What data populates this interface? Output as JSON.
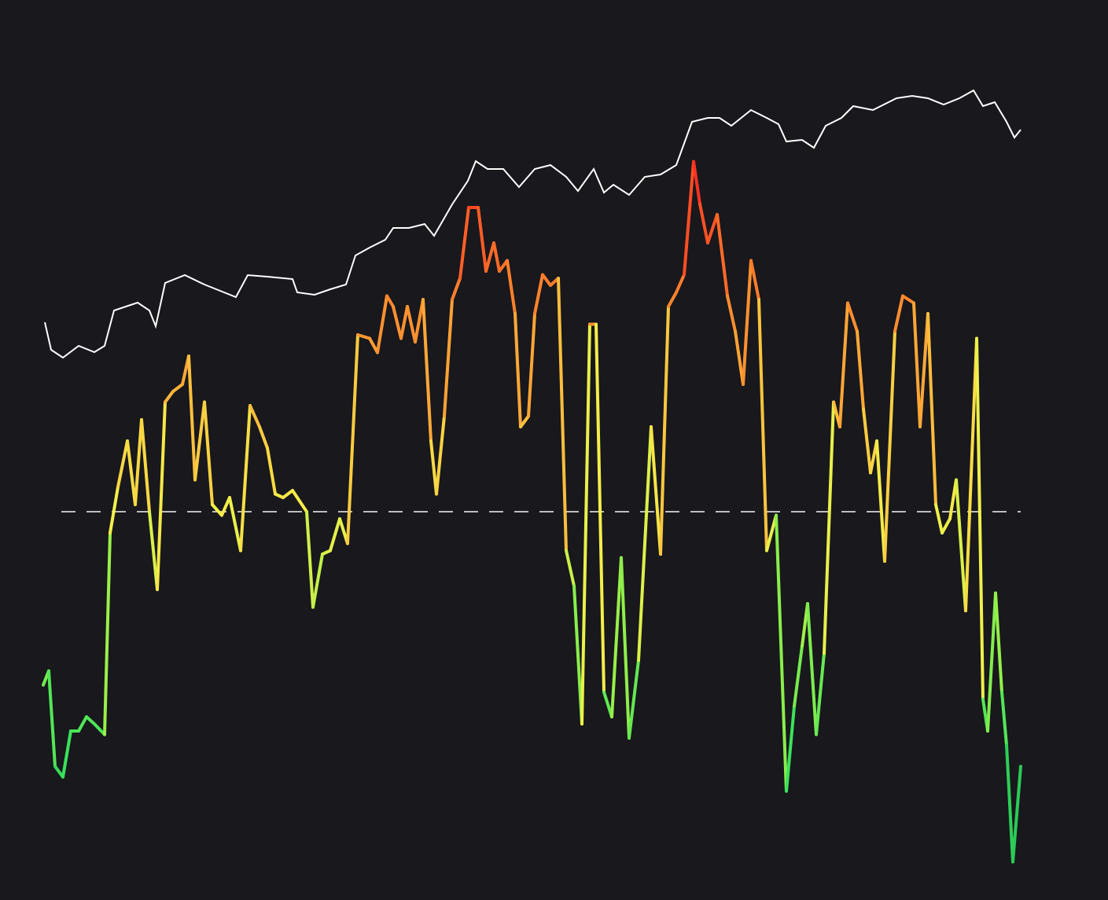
{
  "chart_data": {
    "type": "line",
    "title": "",
    "xlabel": "",
    "ylabel": "",
    "grid": false,
    "legend": "none",
    "background": "#18181d",
    "reference_line": {
      "value": 0,
      "style": "dashed",
      "color": "#bdbdbd"
    },
    "color_scale": [
      "#1db954",
      "#3be35a",
      "#9ef048",
      "#f4f04a",
      "#ffb43a",
      "#ff7a2a",
      "#ff1e1e"
    ],
    "series": [
      {
        "role": "price",
        "color": "#ffffff",
        "x": [
          57,
          65,
          80,
          100,
          120,
          133,
          145,
          160,
          175,
          190,
          198,
          210,
          235,
          260,
          280,
          300,
          315,
          340,
          372,
          378,
          400,
          420,
          440,
          452,
          470,
          490,
          500,
          520,
          540,
          552,
          575,
          595,
          605,
          620,
          640,
          660,
          680,
          700,
          720,
          735,
          755,
          768,
          780,
          800,
          820,
          840,
          860,
          880,
          900,
          915,
          930,
          955,
          975,
          990,
          1000,
          1020,
          1035,
          1050,
          1070,
          1085,
          1110,
          1140,
          1160,
          1180,
          1200,
          1220,
          1238,
          1250,
          1265,
          1280,
          1290,
          1298
        ],
        "values": [
          90,
          55,
          45,
          60,
          52,
          60,
          105,
          110,
          115,
          105,
          85,
          140,
          150,
          138,
          130,
          122,
          150,
          148,
          145,
          128,
          125,
          132,
          138,
          175,
          185,
          195,
          210,
          210,
          215,
          200,
          240,
          270,
          295,
          285,
          285,
          262,
          285,
          290,
          275,
          257,
          285,
          255,
          265,
          252,
          275,
          278,
          290,
          345,
          350,
          350,
          340,
          360,
          350,
          342,
          320,
          322,
          312,
          340,
          350,
          365,
          360,
          375,
          378,
          375,
          367,
          375,
          385,
          365,
          370,
          345,
          325,
          335
        ]
      },
      {
        "role": "oscillator",
        "colored_by_value": true,
        "x": [
          55,
          62,
          70,
          80,
          90,
          100,
          110,
          120,
          133,
          140,
          150,
          162,
          172,
          180,
          190,
          200,
          210,
          220,
          232,
          240,
          248,
          260,
          270,
          282,
          292,
          306,
          318,
          330,
          340,
          350,
          360,
          372,
          390,
          398,
          410,
          420,
          432,
          442,
          455,
          470,
          480,
          492,
          500,
          510,
          518,
          528,
          538,
          548,
          555,
          565,
          575,
          585,
          596,
          608,
          618,
          628,
          635,
          645,
          655,
          662,
          672,
          680,
          690,
          700,
          710,
          720,
          730,
          740,
          750,
          758,
          768,
          778,
          790,
          800,
          812,
          828,
          840,
          850,
          860,
          870,
          882,
          890,
          900,
          912,
          925,
          935,
          945,
          955,
          965,
          975,
          987,
          1000,
          1010,
          1020,
          1027,
          1038,
          1048,
          1060,
          1068,
          1078,
          1090,
          1098,
          1107,
          1115,
          1125,
          1138,
          1148,
          1162,
          1170,
          1180,
          1190,
          1198,
          1208,
          1216,
          1228,
          1242,
          1250,
          1256,
          1266,
          1274,
          1280,
          1288,
          1298
        ],
        "values": [
          -49,
          -45,
          -72,
          -75,
          -62,
          -62,
          -58,
          -60,
          -63,
          -6,
          7,
          20,
          2,
          26,
          0,
          -22,
          31,
          34,
          36,
          44,
          9,
          31,
          2,
          -1,
          4,
          -11,
          30,
          24,
          18,
          5,
          4,
          6,
          0,
          -27,
          -12,
          -11,
          -2,
          -9,
          50,
          49,
          45,
          61,
          58,
          49,
          58,
          48,
          60,
          20,
          5,
          27,
          60,
          66,
          86,
          86,
          68,
          76,
          68,
          71,
          56,
          24,
          27,
          56,
          67,
          64,
          66,
          -11,
          -21,
          -60,
          53,
          53,
          -51,
          -58,
          -13,
          -64,
          -42,
          24,
          -12,
          58,
          62,
          67,
          99,
          87,
          76,
          84,
          61,
          51,
          36,
          71,
          60,
          -11,
          -1,
          -79,
          -55,
          -38,
          -26,
          -63,
          -40,
          31,
          24,
          59,
          51,
          29,
          11,
          20,
          -14,
          51,
          61,
          59,
          24,
          56,
          2,
          -6,
          -2,
          9,
          -28,
          49,
          -53,
          -62,
          -23,
          -51,
          -66,
          -99,
          -72
        ]
      }
    ]
  }
}
